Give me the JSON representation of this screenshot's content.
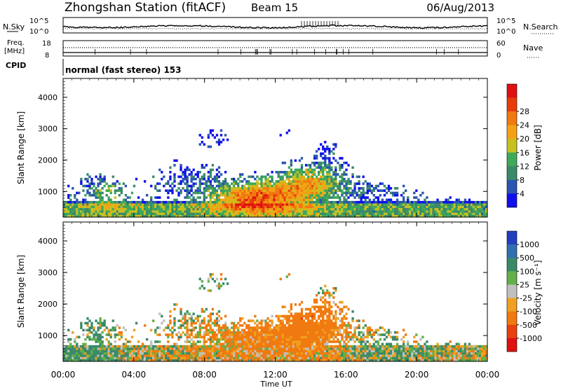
{
  "header": {
    "title": "Zhongshan Station (fitACF)",
    "beam": "Beam 15",
    "date": "06/Aug/2013"
  },
  "top_panels": {
    "nsky_label": "N.Sky",
    "nsearch_label": "N.Search",
    "count_max_label": "10^5",
    "count_min_label": "10^0",
    "freq_label_1": "Freq.",
    "freq_label_2": "[MHz]",
    "freq_ticks": [
      "18",
      "8"
    ],
    "nave_label": "Nave",
    "nave_ticks": [
      "60",
      "0"
    ],
    "cpid_label": "CPID",
    "cpid_value": "normal (fast stereo) 153"
  },
  "chart_data": [
    {
      "type": "heatmap",
      "title": "",
      "xlabel": "",
      "ylabel": "Slant Range [km]",
      "ylim": [
        180,
        4600
      ],
      "yticks": [
        "1000",
        "2000",
        "3000",
        "4000"
      ],
      "colorbar_label": "Power [dB]",
      "colorbar_ticks": [
        "4",
        "8",
        "12",
        "16",
        "20",
        "24",
        "28"
      ],
      "colors": [
        "#1010ee",
        "#2a55b0",
        "#3a8a68",
        "#3fa85a",
        "#c8c020",
        "#f3a214",
        "#f07a10",
        "#e83c0a",
        "#e01010"
      ],
      "clim": [
        0,
        32
      ]
    },
    {
      "type": "heatmap",
      "title": "",
      "xlabel": "Time UT",
      "xticks": [
        "00:00",
        "04:00",
        "08:00",
        "12:00",
        "16:00",
        "20:00",
        "00:00"
      ],
      "ylabel": "Slant Range [km]",
      "ylim": [
        180,
        4600
      ],
      "yticks": [
        "1000",
        "2000",
        "3000",
        "4000"
      ],
      "colorbar_label": "Velocity [m s⁻¹]",
      "colorbar_ticks": [
        "1000",
        "500",
        "100",
        "25",
        "-25",
        "-100",
        "-500",
        "-1000"
      ],
      "colors": [
        "#2040c0",
        "#3070b0",
        "#3a8a68",
        "#62b048",
        "#c0c0c0",
        "#f0a020",
        "#f07a10",
        "#e84010",
        "#e01010"
      ]
    }
  ]
}
